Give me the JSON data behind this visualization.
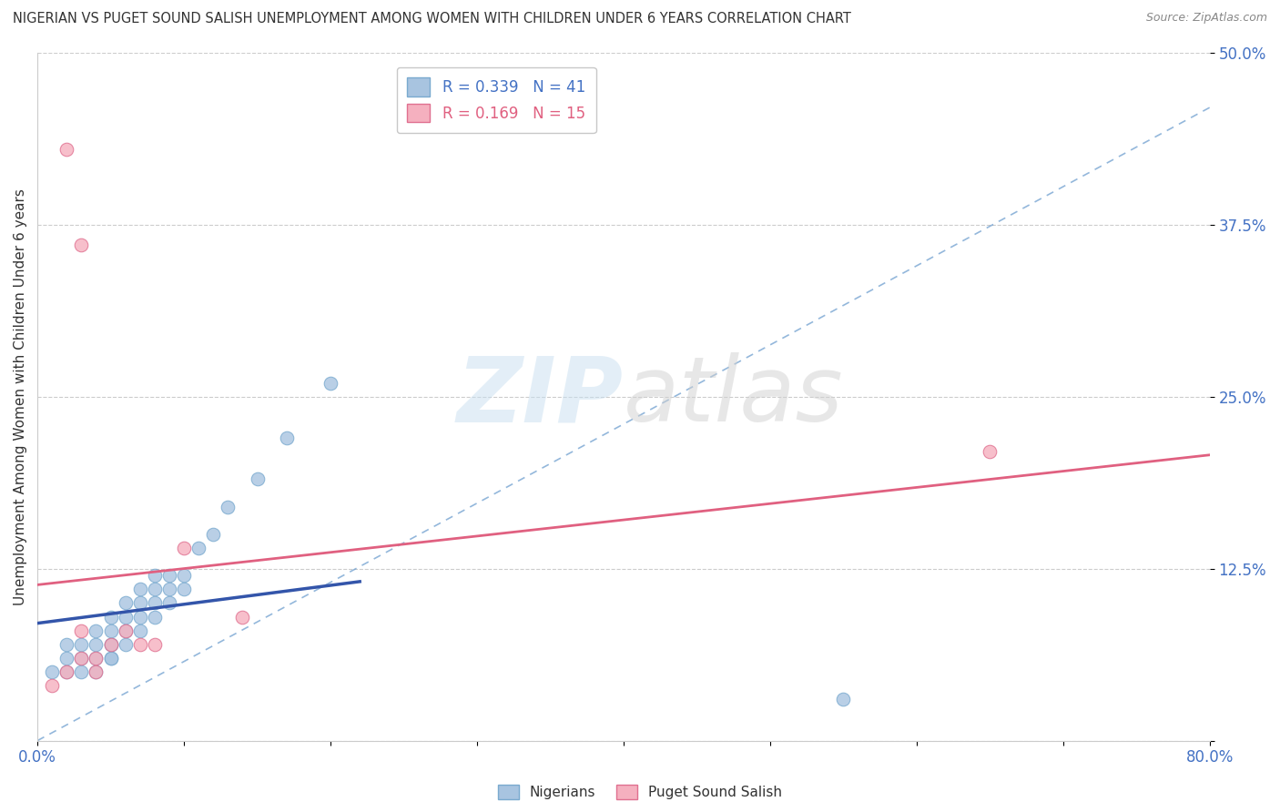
{
  "title": "NIGERIAN VS PUGET SOUND SALISH UNEMPLOYMENT AMONG WOMEN WITH CHILDREN UNDER 6 YEARS CORRELATION CHART",
  "source": "Source: ZipAtlas.com",
  "ylabel": "Unemployment Among Women with Children Under 6 years",
  "xlim": [
    0.0,
    0.8
  ],
  "ylim": [
    0.0,
    0.5
  ],
  "xticks": [
    0.0,
    0.1,
    0.2,
    0.3,
    0.4,
    0.5,
    0.6,
    0.7,
    0.8
  ],
  "xticklabels": [
    "0.0%",
    "",
    "",
    "",
    "",
    "",
    "",
    "",
    "80.0%"
  ],
  "yticks": [
    0.0,
    0.125,
    0.25,
    0.375,
    0.5
  ],
  "yticklabels": [
    "",
    "12.5%",
    "25.0%",
    "37.5%",
    "50.0%"
  ],
  "nigerian_x": [
    0.01,
    0.02,
    0.02,
    0.02,
    0.03,
    0.03,
    0.03,
    0.04,
    0.04,
    0.04,
    0.04,
    0.05,
    0.05,
    0.05,
    0.05,
    0.05,
    0.05,
    0.06,
    0.06,
    0.06,
    0.06,
    0.07,
    0.07,
    0.07,
    0.07,
    0.08,
    0.08,
    0.08,
    0.08,
    0.09,
    0.09,
    0.09,
    0.1,
    0.1,
    0.11,
    0.12,
    0.13,
    0.15,
    0.17,
    0.2,
    0.55
  ],
  "nigerian_y": [
    0.05,
    0.05,
    0.06,
    0.07,
    0.05,
    0.06,
    0.07,
    0.05,
    0.06,
    0.07,
    0.08,
    0.06,
    0.06,
    0.07,
    0.07,
    0.08,
    0.09,
    0.07,
    0.08,
    0.09,
    0.1,
    0.08,
    0.09,
    0.1,
    0.11,
    0.09,
    0.1,
    0.11,
    0.12,
    0.1,
    0.11,
    0.12,
    0.11,
    0.12,
    0.14,
    0.15,
    0.17,
    0.19,
    0.22,
    0.26,
    0.03
  ],
  "salish_x": [
    0.01,
    0.02,
    0.02,
    0.03,
    0.03,
    0.04,
    0.04,
    0.05,
    0.06,
    0.07,
    0.08,
    0.1,
    0.14,
    0.65,
    0.03
  ],
  "salish_y": [
    0.04,
    0.43,
    0.05,
    0.36,
    0.06,
    0.05,
    0.06,
    0.07,
    0.08,
    0.07,
    0.07,
    0.14,
    0.09,
    0.21,
    0.08
  ],
  "nigerian_color": "#a8c4e0",
  "nigerian_edge": "#7aaacf",
  "salish_color": "#f5b0bf",
  "salish_edge": "#e07090",
  "nigerian_line_color": "#3355aa",
  "salish_line_color": "#e06080",
  "diagonal_line_color": "#6699cc",
  "r_nigerian": 0.339,
  "n_nigerian": 41,
  "r_salish": 0.169,
  "n_salish": 15,
  "watermark_zip": "ZIP",
  "watermark_atlas": "atlas",
  "background_color": "#ffffff",
  "grid_color": "#cccccc",
  "marker_size": 110
}
